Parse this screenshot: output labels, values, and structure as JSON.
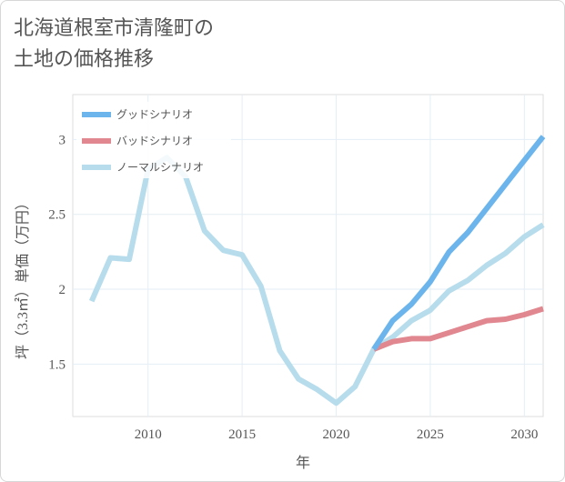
{
  "title_lines": [
    "北海道根室市清隆町の",
    "土地の価格推移"
  ],
  "chart_data": {
    "type": "line",
    "xlabel": "年",
    "ylabel": "坪（3.3㎡）単価（万円）",
    "xlim": [
      2006,
      2031
    ],
    "ylim": [
      1.15,
      3.3
    ],
    "xticks": [
      2010,
      2015,
      2020,
      2025,
      2030
    ],
    "yticks": [
      1.5,
      2,
      2.5,
      3
    ],
    "ytick_labels": [
      "1.5",
      "2",
      "2.5",
      "3"
    ],
    "grid": true,
    "legend_position": "top-left",
    "series": [
      {
        "name": "グッドシナリオ",
        "color": "#6cb4ec",
        "x": [
          2022,
          2023,
          2024,
          2025,
          2026,
          2027,
          2028,
          2029,
          2030,
          2031
        ],
        "y": [
          1.6,
          1.79,
          1.9,
          2.05,
          2.25,
          2.38,
          2.54,
          2.7,
          2.86,
          3.02
        ]
      },
      {
        "name": "バッドシナリオ",
        "color": "#e0878f",
        "x": [
          2022,
          2023,
          2024,
          2025,
          2026,
          2027,
          2028,
          2029,
          2030,
          2031
        ],
        "y": [
          1.6,
          1.65,
          1.67,
          1.67,
          1.71,
          1.75,
          1.79,
          1.8,
          1.83,
          1.87
        ]
      },
      {
        "name": "ノーマルシナリオ",
        "color": "#b7dcec",
        "x": [
          2007,
          2008,
          2009,
          2010,
          2011,
          2012,
          2013,
          2014,
          2015,
          2016,
          2017,
          2018,
          2019,
          2020,
          2021,
          2022,
          2023,
          2024,
          2025,
          2026,
          2027,
          2028,
          2029,
          2030,
          2031
        ],
        "y": [
          1.92,
          2.21,
          2.2,
          2.8,
          2.88,
          2.75,
          2.39,
          2.26,
          2.23,
          2.02,
          1.59,
          1.4,
          1.33,
          1.24,
          1.35,
          1.6,
          1.68,
          1.79,
          1.86,
          1.99,
          2.06,
          2.16,
          2.24,
          2.35,
          2.43
        ]
      }
    ]
  }
}
